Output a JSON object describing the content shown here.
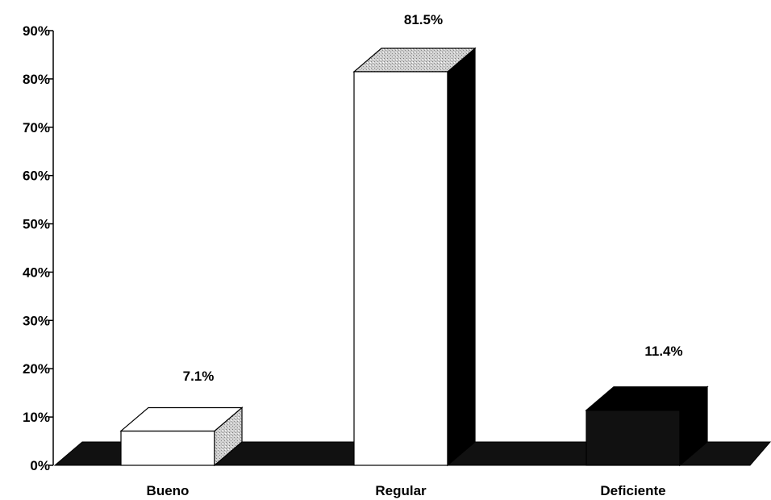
{
  "chart_data": {
    "type": "bar",
    "style": "3d-column",
    "categories": [
      "Bueno",
      "Regular",
      "Deficiente"
    ],
    "values": [
      7.1,
      81.5,
      11.4
    ],
    "data_labels": [
      "7.1%",
      "81.5%",
      "11.4%"
    ],
    "ylim": [
      0,
      90
    ],
    "yticks": [
      "0%",
      "10%",
      "20%",
      "30%",
      "40%",
      "50%",
      "60%",
      "70%",
      "80%",
      "90%"
    ],
    "grid": false,
    "legend": "none",
    "bar_colors": [
      "#ffffff",
      "#ffffff",
      "#111111"
    ],
    "side_colors": [
      "#b0b0b0",
      "#000000",
      "#000000"
    ],
    "top_colors": [
      "#ffffff",
      "#c4c4c4",
      "#000000"
    ],
    "floor_color": "#111111"
  }
}
